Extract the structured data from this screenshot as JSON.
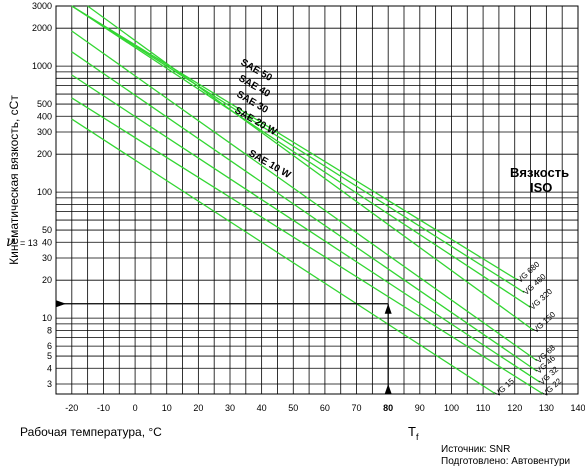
{
  "chart_data": {
    "type": "line",
    "title": "",
    "xlabel": "Рабочая температура, °C",
    "ylabel": "Кинематическая вязкость, сСт",
    "x_scale": "linear",
    "y_scale": "log",
    "xlim": [
      -25,
      140
    ],
    "ylim": [
      2.5,
      3000
    ],
    "grid": true,
    "x_ticks": [
      "-20",
      "-10",
      "0",
      "10",
      "20",
      "30",
      "40",
      "50",
      "60",
      "70",
      "80",
      "90",
      "100",
      "110",
      "120",
      "130",
      "140"
    ],
    "y_ticks": [
      "3000",
      "2000",
      "1000",
      "500",
      "400",
      "300",
      "200",
      "100",
      "50",
      "40",
      "30",
      "20",
      "10",
      "8",
      "6",
      "5",
      "4",
      "3"
    ],
    "y_tick_values": [
      3000,
      2000,
      1000,
      500,
      400,
      300,
      200,
      100,
      50,
      40,
      30,
      20,
      10,
      8,
      6,
      5,
      4,
      3
    ],
    "series": [
      {
        "name": "VG 680",
        "x": [
          -20,
          121
        ],
        "y": [
          3000,
          20
        ]
      },
      {
        "name": "VG 460",
        "x": [
          -20,
          123
        ],
        "y": [
          3000,
          16
        ]
      },
      {
        "name": "VG 320",
        "x": [
          -20,
          125
        ],
        "y": [
          3000,
          12.2
        ]
      },
      {
        "name": "VG 150",
        "x": [
          -15,
          126
        ],
        "y": [
          3000,
          8
        ]
      },
      {
        "name": "VG 68",
        "x": [
          -20,
          127
        ],
        "y": [
          1900,
          4.6
        ]
      },
      {
        "name": "VG 46",
        "x": [
          -20,
          127
        ],
        "y": [
          1300,
          3.8
        ]
      },
      {
        "name": "VG 32",
        "x": [
          -20,
          128
        ],
        "y": [
          850,
          3.1
        ]
      },
      {
        "name": "VG 22",
        "x": [
          -20,
          129
        ],
        "y": [
          560,
          2.5
        ]
      },
      {
        "name": "VG 15",
        "x": [
          -20,
          114
        ],
        "y": [
          380,
          2.5
        ]
      }
    ],
    "iso_legend_title": [
      "Вязкость",
      "ISO"
    ],
    "sae_labels": [
      "SAE 50",
      "SAE 40",
      "SAE 30",
      "SAE 20 W",
      "SAE 10 W"
    ],
    "annotation": {
      "nu_symbol": "ν",
      "nu_text": "= 13",
      "nu_value": 13,
      "tf_value": 80,
      "tf_tick_label": "80",
      "tf_main": "T",
      "tf_sub": "f"
    },
    "colors": {
      "series": "#33d633",
      "grid": "#000000",
      "annotation": "#000000"
    }
  },
  "source": {
    "line1": "Источник: SNR",
    "line2": "Подготовлено: Автовентури"
  }
}
